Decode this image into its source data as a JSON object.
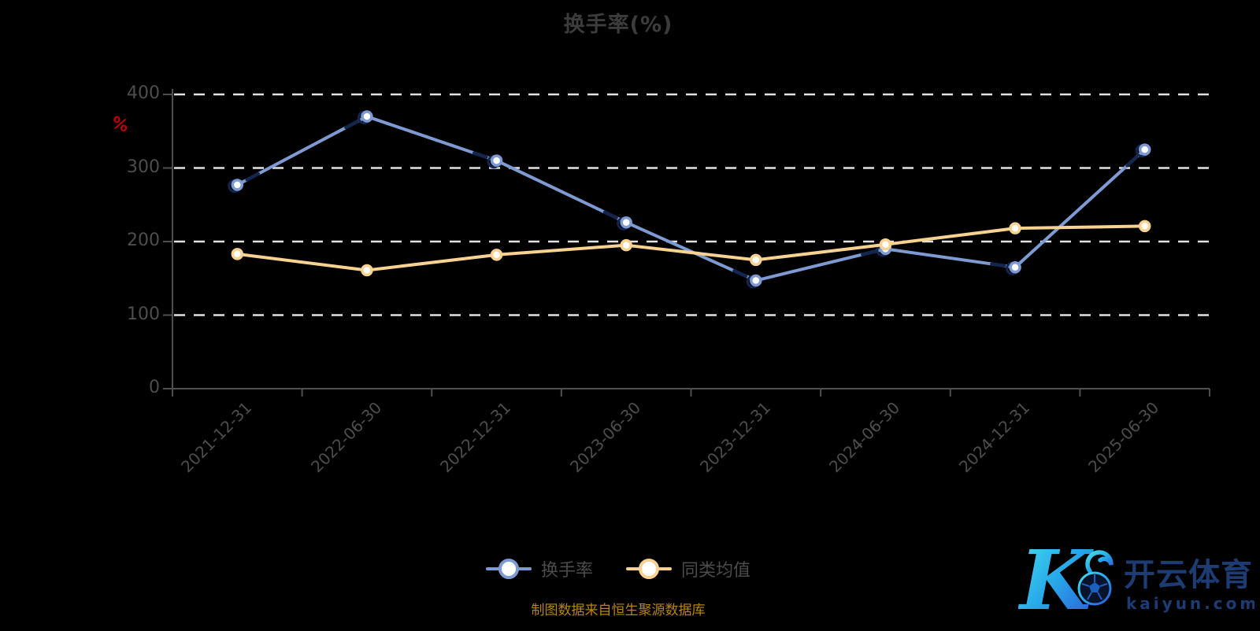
{
  "title": "换手率(%)",
  "y_axis": {
    "unit": "%"
  },
  "legend": {
    "items": [
      {
        "label": "换手率",
        "color": "#7e9ad2"
      },
      {
        "label": "同类均值",
        "color": "#f7d290"
      }
    ]
  },
  "footer": "制图数据来自恒生聚源数据库",
  "watermark": {
    "letter": "K",
    "brand": "开云体育",
    "domain": "kaiyun.com"
  },
  "colors": {
    "background": "#000000",
    "grid": "#e2e2e2",
    "axis": "#4f4f4f",
    "title": "#3c3c3c",
    "label": "#4d4d4d",
    "unit": "#c00000",
    "footer": "#b8860b",
    "series_blue": "#7e9ad2",
    "series_yellow": "#f7d290",
    "marker_fill": "#ffffff",
    "watermark_text": "#1d3c74",
    "watermark_gradient": [
      "#45e0f0",
      "#28a8e8",
      "#2b55d8"
    ]
  },
  "chart_data": {
    "type": "line",
    "title": "换手率(%)",
    "categories": [
      "2021-12-31",
      "2022-06-30",
      "2022-12-31",
      "2023-06-30",
      "2023-12-31",
      "2024-06-30",
      "2024-12-31",
      "2025-06-30"
    ],
    "series": [
      {
        "name": "换手率",
        "color": "#7e9ad2",
        "marker": "circle-white-fill",
        "values": [
          277,
          370,
          310,
          226,
          147,
          190,
          165,
          325
        ]
      },
      {
        "name": "同类均值",
        "color": "#f7d290",
        "marker": "circle-white-fill",
        "values": [
          183,
          161,
          182,
          195,
          175,
          196,
          218,
          221
        ]
      }
    ],
    "xlabel": "",
    "ylabel": "%",
    "ylim": [
      0,
      400
    ],
    "ytick_step": 100,
    "grid": "horizontal-dashed",
    "legend_position": "bottom"
  }
}
